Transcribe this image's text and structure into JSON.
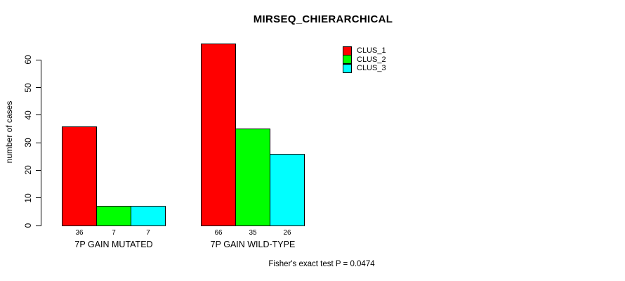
{
  "chart_data": {
    "type": "bar",
    "title": "MIRSEQ_CHIERARCHICAL",
    "xlabel": "",
    "ylabel": "number of cases",
    "ylim": [
      0,
      60
    ],
    "yticks": [
      "0",
      "10",
      "20",
      "30",
      "40",
      "50",
      "60"
    ],
    "grid": false,
    "legend_position": "top-right",
    "categories": [
      "7P GAIN MUTATED",
      "7P GAIN WILD-TYPE"
    ],
    "series": [
      {
        "name": "CLUS_1",
        "color": "#ff0000",
        "values": [
          36,
          66
        ]
      },
      {
        "name": "CLUS_2",
        "color": "#00ff00",
        "values": [
          7,
          35
        ]
      },
      {
        "name": "CLUS_3",
        "color": "#00ffff",
        "values": [
          7,
          26
        ]
      }
    ],
    "bar_value_labels": [
      [
        "36",
        "7",
        "7"
      ],
      [
        "66",
        "35",
        "26"
      ]
    ],
    "annotation": "Fisher's exact test P = 0.0474"
  }
}
